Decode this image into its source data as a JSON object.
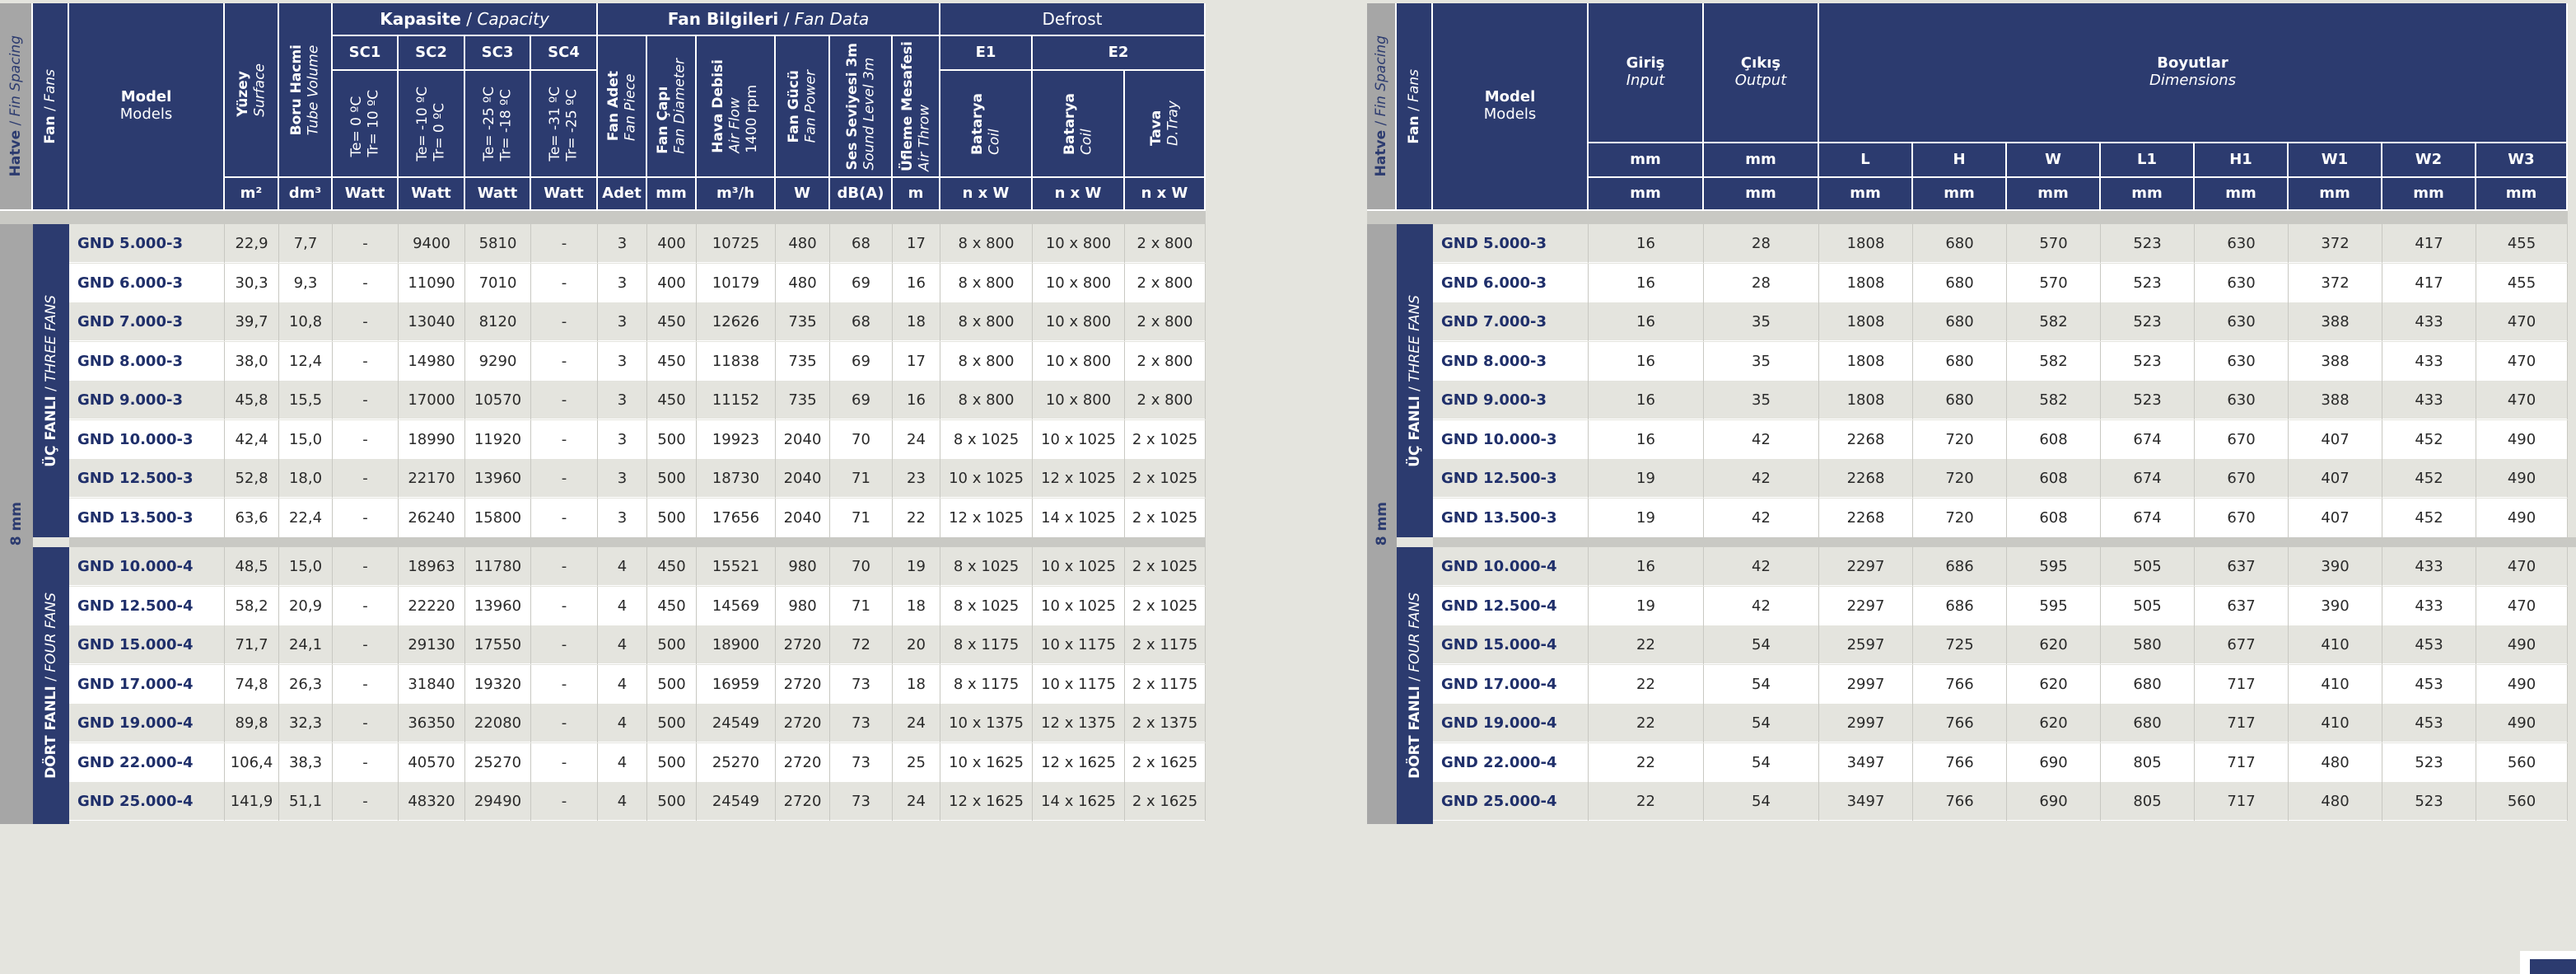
{
  "left": {
    "header": {
      "hatve": "Hatve",
      "hatve_en": "Fin Spacing",
      "fan": "Fan",
      "fan_en": "Fans",
      "model": "Model",
      "model_en": "Models",
      "yuzey": "Yüzey",
      "yuzey_en": "Surface",
      "boru": "Boru Hacmi",
      "boru_en": "Tube Volume",
      "kapasite": "Kapasite",
      "kapasite_en": "Capacity",
      "fan_bilgileri": "Fan Bilgileri",
      "fan_bilgileri_en": "Fan Data",
      "defrost": "Defrost",
      "sc1": "SC1",
      "sc2": "SC2",
      "sc3": "SC3",
      "sc4": "SC4",
      "e1": "E1",
      "e2": "E2",
      "sc1_cond1": "Te= 0 ºC",
      "sc1_cond2": "Tr= 10 ºC",
      "sc2_cond1": "Te= -10 ºC",
      "sc2_cond2": "Tr= 0 ºC",
      "sc3_cond1": "Te= -25 ºC",
      "sc3_cond2": "Tr= -18 ºC",
      "sc4_cond1": "Te= -31 ºC",
      "sc4_cond2": "Tr= -25 ºC",
      "fan_adet": "Fan Adet",
      "fan_adet_en": "Fan Piece",
      "fan_capi": "Fan Çapı",
      "fan_capi_en": "Fan Diameter",
      "hava_debisi": "Hava Debisi",
      "hava_debisi_en": "Air Flow",
      "hava_debisi_rpm": "1400 rpm",
      "fan_gucu": "Fan Gücü",
      "fan_gucu_en": "Fan Power",
      "ses": "Ses Seviyesi 3m",
      "ses_en": "Sound Level 3m",
      "ufleme": "Üfleme Mesafesi",
      "ufleme_en": "Air Throw",
      "batarya": "Batarya",
      "batarya_en": "Coil",
      "tava": "Tava",
      "tava_en": "D.Tray",
      "units": [
        "m²",
        "dm³",
        "Watt",
        "Watt",
        "Watt",
        "Watt",
        "Adet",
        "mm",
        "m³/h",
        "W",
        "dB(A)",
        "m",
        "n x W",
        "n x W",
        "n x W"
      ]
    },
    "group_hatve": "8 mm",
    "group_three": "ÜÇ FANLI",
    "group_three_en": "THREE FANS",
    "group_four": "DÖRT FANLI",
    "group_four_en": "FOUR FANS",
    "rows3": [
      [
        "GND 5.000-3",
        "22,9",
        "7,7",
        "-",
        "9400",
        "5810",
        "-",
        "3",
        "400",
        "10725",
        "480",
        "68",
        "17",
        "8 x 800",
        "10 x 800",
        "2 x 800"
      ],
      [
        "GND 6.000-3",
        "30,3",
        "9,3",
        "-",
        "11090",
        "7010",
        "-",
        "3",
        "400",
        "10179",
        "480",
        "69",
        "16",
        "8 x 800",
        "10 x 800",
        "2 x 800"
      ],
      [
        "GND 7.000-3",
        "39,7",
        "10,8",
        "-",
        "13040",
        "8120",
        "-",
        "3",
        "450",
        "12626",
        "735",
        "68",
        "18",
        "8 x 800",
        "10 x 800",
        "2 x 800"
      ],
      [
        "GND 8.000-3",
        "38,0",
        "12,4",
        "-",
        "14980",
        "9290",
        "-",
        "3",
        "450",
        "11838",
        "735",
        "69",
        "17",
        "8 x 800",
        "10 x 800",
        "2 x 800"
      ],
      [
        "GND 9.000-3",
        "45,8",
        "15,5",
        "-",
        "17000",
        "10570",
        "-",
        "3",
        "450",
        "11152",
        "735",
        "69",
        "16",
        "8 x 800",
        "10 x 800",
        "2 x 800"
      ],
      [
        "GND 10.000-3",
        "42,4",
        "15,0",
        "-",
        "18990",
        "11920",
        "-",
        "3",
        "500",
        "19923",
        "2040",
        "70",
        "24",
        "8 x 1025",
        "10 x 1025",
        "2 x 1025"
      ],
      [
        "GND 12.500-3",
        "52,8",
        "18,0",
        "-",
        "22170",
        "13960",
        "-",
        "3",
        "500",
        "18730",
        "2040",
        "71",
        "23",
        "10 x 1025",
        "12 x 1025",
        "2 x 1025"
      ],
      [
        "GND 13.500-3",
        "63,6",
        "22,4",
        "-",
        "26240",
        "15800",
        "-",
        "3",
        "500",
        "17656",
        "2040",
        "71",
        "22",
        "12 x 1025",
        "14 x 1025",
        "2 x 1025"
      ]
    ],
    "rows4": [
      [
        "GND 10.000-4",
        "48,5",
        "15,0",
        "-",
        "18963",
        "11780",
        "-",
        "4",
        "450",
        "15521",
        "980",
        "70",
        "19",
        "8 x 1025",
        "10 x 1025",
        "2 x 1025"
      ],
      [
        "GND 12.500-4",
        "58,2",
        "20,9",
        "-",
        "22220",
        "13960",
        "-",
        "4",
        "450",
        "14569",
        "980",
        "71",
        "18",
        "8 x 1025",
        "10 x 1025",
        "2 x 1025"
      ],
      [
        "GND 15.000-4",
        "71,7",
        "24,1",
        "-",
        "29130",
        "17550",
        "-",
        "4",
        "500",
        "18900",
        "2720",
        "72",
        "20",
        "8 x 1175",
        "10 x 1175",
        "2 x 1175"
      ],
      [
        "GND 17.000-4",
        "74,8",
        "26,3",
        "-",
        "31840",
        "19320",
        "-",
        "4",
        "500",
        "16959",
        "2720",
        "73",
        "18",
        "8 x 1175",
        "10 x 1175",
        "2 x 1175"
      ],
      [
        "GND 19.000-4",
        "89,8",
        "32,3",
        "-",
        "36350",
        "22080",
        "-",
        "4",
        "500",
        "24549",
        "2720",
        "73",
        "24",
        "10 x 1375",
        "12 x 1375",
        "2 x 1375"
      ],
      [
        "GND 22.000-4",
        "106,4",
        "38,3",
        "-",
        "40570",
        "25270",
        "-",
        "4",
        "500",
        "25270",
        "2720",
        "73",
        "25",
        "10 x 1625",
        "12 x 1625",
        "2 x 1625"
      ],
      [
        "GND 25.000-4",
        "141,9",
        "51,1",
        "-",
        "48320",
        "29490",
        "-",
        "4",
        "500",
        "24549",
        "2720",
        "73",
        "24",
        "12 x 1625",
        "14 x 1625",
        "2 x 1625"
      ]
    ]
  },
  "right": {
    "header": {
      "hatve": "Hatve",
      "hatve_en": "Fin Spacing",
      "fan": "Fan",
      "fan_en": "Fans",
      "model": "Model",
      "model_en": "Models",
      "giris": "Giriş",
      "giris_en": "Input",
      "cikis": "Çıkış",
      "cikis_en": "Output",
      "boyutlar": "Boyutlar",
      "boyutlar_en": "Dimensions",
      "dims": [
        "L",
        "H",
        "W",
        "L1",
        "H1",
        "W1",
        "W2",
        "W3"
      ],
      "units": [
        "mm",
        "mm",
        "mm",
        "mm",
        "mm",
        "mm",
        "mm",
        "mm",
        "mm",
        "mm"
      ]
    },
    "group_hatve": "8 mm",
    "group_three": "ÜÇ FANLI",
    "group_three_en": "THREE FANS",
    "group_four": "DÖRT FANLI",
    "group_four_en": "FOUR FANS",
    "rows3": [
      [
        "GND 5.000-3",
        "16",
        "28",
        "1808",
        "680",
        "570",
        "523",
        "630",
        "372",
        "417",
        "455"
      ],
      [
        "GND 6.000-3",
        "16",
        "28",
        "1808",
        "680",
        "570",
        "523",
        "630",
        "372",
        "417",
        "455"
      ],
      [
        "GND 7.000-3",
        "16",
        "35",
        "1808",
        "680",
        "582",
        "523",
        "630",
        "388",
        "433",
        "470"
      ],
      [
        "GND 8.000-3",
        "16",
        "35",
        "1808",
        "680",
        "582",
        "523",
        "630",
        "388",
        "433",
        "470"
      ],
      [
        "GND 9.000-3",
        "16",
        "35",
        "1808",
        "680",
        "582",
        "523",
        "630",
        "388",
        "433",
        "470"
      ],
      [
        "GND 10.000-3",
        "16",
        "42",
        "2268",
        "720",
        "608",
        "674",
        "670",
        "407",
        "452",
        "490"
      ],
      [
        "GND 12.500-3",
        "19",
        "42",
        "2268",
        "720",
        "608",
        "674",
        "670",
        "407",
        "452",
        "490"
      ],
      [
        "GND 13.500-3",
        "19",
        "42",
        "2268",
        "720",
        "608",
        "674",
        "670",
        "407",
        "452",
        "490"
      ]
    ],
    "rows4": [
      [
        "GND 10.000-4",
        "16",
        "42",
        "2297",
        "686",
        "595",
        "505",
        "637",
        "390",
        "433",
        "470"
      ],
      [
        "GND 12.500-4",
        "19",
        "42",
        "2297",
        "686",
        "595",
        "505",
        "637",
        "390",
        "433",
        "470"
      ],
      [
        "GND 15.000-4",
        "22",
        "54",
        "2597",
        "725",
        "620",
        "580",
        "677",
        "410",
        "453",
        "490"
      ],
      [
        "GND 17.000-4",
        "22",
        "54",
        "2997",
        "766",
        "620",
        "680",
        "717",
        "410",
        "453",
        "490"
      ],
      [
        "GND 19.000-4",
        "22",
        "54",
        "2997",
        "766",
        "620",
        "680",
        "717",
        "410",
        "453",
        "490"
      ],
      [
        "GND 22.000-4",
        "22",
        "54",
        "3497",
        "766",
        "690",
        "805",
        "717",
        "480",
        "523",
        "560"
      ],
      [
        "GND 25.000-4",
        "22",
        "54",
        "3497",
        "766",
        "690",
        "805",
        "717",
        "480",
        "523",
        "560"
      ]
    ]
  }
}
